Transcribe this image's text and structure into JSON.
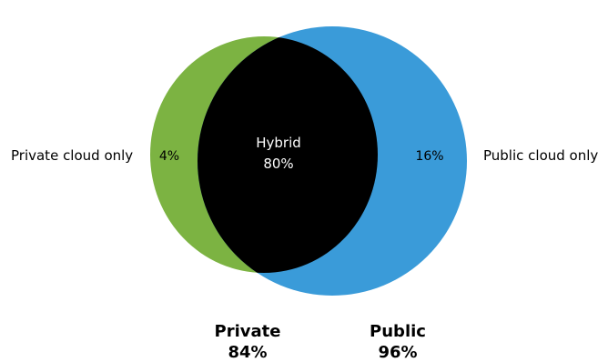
{
  "colors": {
    "private": "#7cb342",
    "public": "#3a9bd9",
    "hybrid": "#000000"
  },
  "labels": {
    "private_only": "Private cloud only",
    "public_only": "Public cloud only",
    "private_only_pct": "4%",
    "public_only_pct": "16%",
    "hybrid_name": "Hybrid",
    "hybrid_pct": "80%",
    "private_name": "Private",
    "private_pct": "84%",
    "public_name": "Public",
    "public_pct": "96%"
  }
}
